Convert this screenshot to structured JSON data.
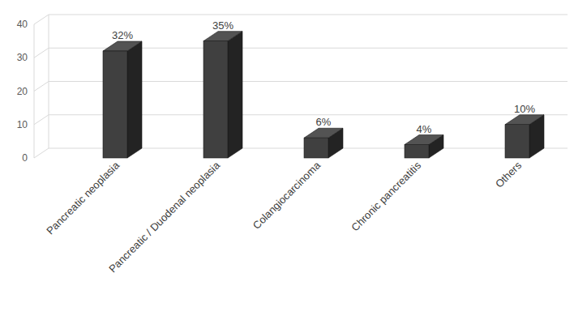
{
  "chart_data": {
    "type": "bar",
    "categories": [
      "Pancreatic neoplasia",
      "Pancreatic / Duodenal neoplasia",
      "Colangiocarcinoma",
      "Chronic pancreatitis",
      "Others"
    ],
    "values": [
      32,
      35,
      6,
      4,
      10
    ],
    "value_labels": [
      "32%",
      "35%",
      "6%",
      "4%",
      "10%"
    ],
    "color": "#404040",
    "ylim": [
      0,
      40
    ],
    "yticks": [
      0,
      10,
      20,
      30,
      40
    ],
    "grid": true,
    "data_labels": true
  }
}
